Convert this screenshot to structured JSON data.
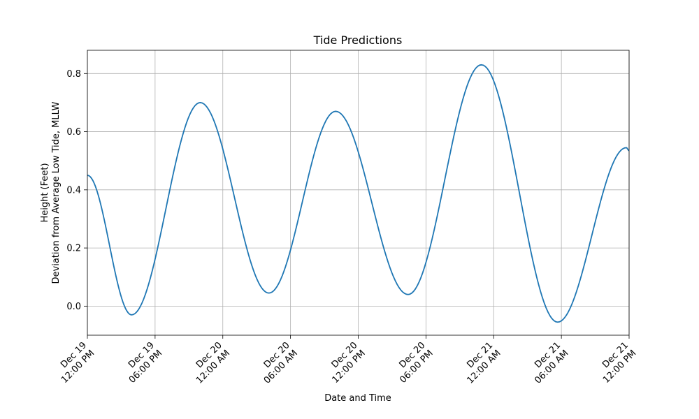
{
  "chart_data": {
    "type": "line",
    "title": "Tide Predictions",
    "xlabel": "Date and Time",
    "ylabel_line1": "Height (Feet)",
    "ylabel_line2": "Deviation from Average Low Tide, MLLW",
    "xlim": [
      "Dec 19 12:00 PM",
      "Dec 21 12:00 PM"
    ],
    "ylim": [
      -0.1,
      0.88
    ],
    "grid": true,
    "legend": "none",
    "line_color": "#1f77b4",
    "x_ticks": [
      {
        "line1": "Dec 19",
        "line2": "12:00 PM"
      },
      {
        "line1": "Dec 19",
        "line2": "06:00 PM"
      },
      {
        "line1": "Dec 20",
        "line2": "12:00 AM"
      },
      {
        "line1": "Dec 20",
        "line2": "06:00 AM"
      },
      {
        "line1": "Dec 20",
        "line2": "12:00 PM"
      },
      {
        "line1": "Dec 20",
        "line2": "06:00 PM"
      },
      {
        "line1": "Dec 21",
        "line2": "12:00 AM"
      },
      {
        "line1": "Dec 21",
        "line2": "06:00 AM"
      },
      {
        "line1": "Dec 21",
        "line2": "12:00 PM"
      }
    ],
    "y_ticks": [
      "0.0",
      "0.2",
      "0.4",
      "0.6",
      "0.8"
    ],
    "series": [
      {
        "extrema": [
          {
            "time": "Dec 19 12:00 PM",
            "height": 0.45
          },
          {
            "time": "Dec 19 03:55 PM",
            "height": -0.03
          },
          {
            "time": "Dec 19 10:00 PM",
            "height": 0.7
          },
          {
            "time": "Dec 20 04:05 AM",
            "height": 0.045
          },
          {
            "time": "Dec 20 10:00 AM",
            "height": 0.67
          },
          {
            "time": "Dec 20 04:25 PM",
            "height": 0.04
          },
          {
            "time": "Dec 20 10:55 PM",
            "height": 0.83
          },
          {
            "time": "Dec 21 05:40 AM",
            "height": -0.055
          },
          {
            "time": "Dec 21 11:45 AM",
            "height": 0.545
          },
          {
            "time": "Dec 21 12:00 PM",
            "height": 0.535
          }
        ]
      }
    ]
  }
}
